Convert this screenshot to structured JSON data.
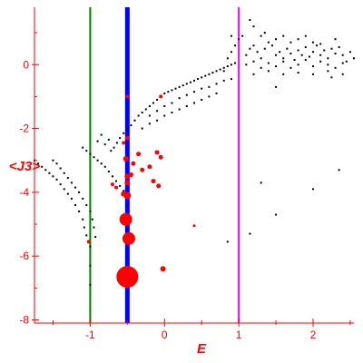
{
  "chart_data": {
    "type": "scatter",
    "title": "",
    "xlabel": "E",
    "ylabel": "<J3>",
    "xlim": [
      -1.75,
      2.55
    ],
    "ylim": [
      -8.1,
      1.8
    ],
    "x_ticks": [
      -1,
      0,
      1,
      2
    ],
    "y_ticks": [
      0,
      -2,
      -4,
      -6,
      -8
    ],
    "colors": {
      "axis": "#ff0000",
      "points": "#000000",
      "highlight": "#ff0000",
      "line_green": "#008000",
      "line_blue": "#0000ff",
      "line_magenta": "#ff00ff"
    },
    "vertical_lines": [
      {
        "x": -1.0,
        "color": "#008000",
        "weight": "thin"
      },
      {
        "x": -0.5,
        "color": "#0000ff",
        "weight": "thick"
      },
      {
        "x": 1.0,
        "color": "#ff00ff",
        "weight": "thin"
      }
    ],
    "series": [
      {
        "color": "#000000",
        "points": [
          [
            -1.75,
            -3.0
          ],
          [
            -1.7,
            -3.1
          ],
          [
            -1.65,
            -3.2
          ],
          [
            -1.6,
            -3.3
          ],
          [
            -1.55,
            -3.4
          ],
          [
            -1.5,
            -3.5
          ],
          [
            -1.45,
            -3.6
          ],
          [
            -1.4,
            -3.75
          ],
          [
            -1.35,
            -3.9
          ],
          [
            -1.3,
            -4.05
          ],
          [
            -1.25,
            -4.2
          ],
          [
            -1.2,
            -4.4
          ],
          [
            -1.15,
            -4.6
          ],
          [
            -1.1,
            -4.85
          ],
          [
            -1.08,
            -5.1
          ],
          [
            -1.05,
            -5.35
          ],
          [
            -1.02,
            -5.55
          ],
          [
            -1.0,
            -5.7
          ],
          [
            -1.5,
            -3.0
          ],
          [
            -1.45,
            -3.1
          ],
          [
            -1.4,
            -3.25
          ],
          [
            -1.35,
            -3.4
          ],
          [
            -1.3,
            -3.55
          ],
          [
            -1.25,
            -3.7
          ],
          [
            -1.2,
            -3.85
          ],
          [
            -1.15,
            -4.0
          ],
          [
            -1.1,
            -4.2
          ],
          [
            -1.05,
            -4.4
          ],
          [
            -1.0,
            -4.6
          ],
          [
            -0.97,
            -4.85
          ],
          [
            -0.95,
            -5.1
          ],
          [
            -0.93,
            -5.4
          ],
          [
            -1.0,
            -6.3
          ],
          [
            -1.0,
            -6.9
          ],
          [
            -1.1,
            -2.6
          ],
          [
            -1.05,
            -2.7
          ],
          [
            -1.0,
            -2.8
          ],
          [
            -0.95,
            -2.9
          ],
          [
            -0.9,
            -3.0
          ],
          [
            -0.85,
            -3.1
          ],
          [
            -0.8,
            -3.2
          ],
          [
            -0.75,
            -3.35
          ],
          [
            -0.7,
            -3.5
          ],
          [
            -0.65,
            -3.65
          ],
          [
            -0.6,
            -3.8
          ],
          [
            -0.55,
            -3.95
          ],
          [
            -0.9,
            -2.4
          ],
          [
            -0.8,
            -2.5
          ],
          [
            -0.85,
            -2.2
          ],
          [
            -0.75,
            -2.35
          ],
          [
            -0.72,
            -2.7
          ],
          [
            -0.68,
            -2.6
          ],
          [
            -0.64,
            -2.45
          ],
          [
            -0.6,
            -2.3
          ],
          [
            -0.55,
            -2.15
          ],
          [
            -0.5,
            -2.0
          ],
          [
            -0.45,
            -1.9
          ],
          [
            -0.4,
            -1.75
          ],
          [
            -0.35,
            -1.6
          ],
          [
            -0.3,
            -1.5
          ],
          [
            -0.25,
            -1.4
          ],
          [
            -0.2,
            -1.3
          ],
          [
            -0.15,
            -1.2
          ],
          [
            -0.1,
            -1.1
          ],
          [
            -0.05,
            -1.0
          ],
          [
            0.0,
            -0.9
          ],
          [
            0.05,
            -0.85
          ],
          [
            0.1,
            -0.8
          ],
          [
            0.15,
            -0.75
          ],
          [
            0.2,
            -0.7
          ],
          [
            0.25,
            -0.65
          ],
          [
            0.3,
            -0.6
          ],
          [
            0.35,
            -0.55
          ],
          [
            0.4,
            -0.5
          ],
          [
            0.45,
            -0.45
          ],
          [
            0.5,
            -0.4
          ],
          [
            0.55,
            -0.35
          ],
          [
            0.6,
            -0.3
          ],
          [
            0.65,
            -0.25
          ],
          [
            0.7,
            -0.2
          ],
          [
            0.75,
            -0.15
          ],
          [
            0.8,
            -0.1
          ],
          [
            0.85,
            -0.05
          ],
          [
            0.9,
            0.0
          ],
          [
            0.95,
            0.05
          ],
          [
            -0.2,
            -1.6
          ],
          [
            -0.1,
            -1.45
          ],
          [
            0.0,
            -1.3
          ],
          [
            0.1,
            -1.2
          ],
          [
            0.2,
            -1.05
          ],
          [
            0.3,
            -0.95
          ],
          [
            0.4,
            -0.85
          ],
          [
            0.5,
            -0.75
          ],
          [
            0.6,
            -0.7
          ],
          [
            0.7,
            -0.6
          ],
          [
            0.8,
            -0.5
          ],
          [
            0.9,
            -0.45
          ],
          [
            -0.3,
            -2.0
          ],
          [
            -0.2,
            -1.85
          ],
          [
            -0.1,
            -1.75
          ],
          [
            0.0,
            -1.6
          ],
          [
            0.1,
            -1.5
          ],
          [
            0.2,
            -1.4
          ],
          [
            0.3,
            -1.3
          ],
          [
            0.4,
            -1.2
          ],
          [
            0.5,
            -1.1
          ],
          [
            0.6,
            -1.0
          ],
          [
            0.7,
            -0.9
          ],
          [
            0.8,
            -0.2
          ],
          [
            0.85,
            0.2
          ],
          [
            0.9,
            0.4
          ],
          [
            0.95,
            0.6
          ],
          [
            1.0,
            0.8
          ],
          [
            1.05,
            0.9
          ],
          [
            0.9,
            0.9
          ],
          [
            1.1,
            0.3
          ],
          [
            1.15,
            0.5
          ],
          [
            1.2,
            0.6
          ],
          [
            1.25,
            0.4
          ],
          [
            1.3,
            0.2
          ],
          [
            1.35,
            0.5
          ],
          [
            1.4,
            0.7
          ],
          [
            1.45,
            0.6
          ],
          [
            1.5,
            0.3
          ],
          [
            1.55,
            0.4
          ],
          [
            1.6,
            0.2
          ],
          [
            1.65,
            0.5
          ],
          [
            1.7,
            0.35
          ],
          [
            1.75,
            0.15
          ],
          [
            1.8,
            0.45
          ],
          [
            1.85,
            0.3
          ],
          [
            1.9,
            0.55
          ],
          [
            1.95,
            0.25
          ],
          [
            2.0,
            0.4
          ],
          [
            2.05,
            0.6
          ],
          [
            2.1,
            0.3
          ],
          [
            2.15,
            0.45
          ],
          [
            2.2,
            0.2
          ],
          [
            2.25,
            0.5
          ],
          [
            2.3,
            0.35
          ],
          [
            2.35,
            0.55
          ],
          [
            2.4,
            0.3
          ],
          [
            2.45,
            0.1
          ],
          [
            2.5,
            0.4
          ],
          [
            2.55,
            0.2
          ],
          [
            1.1,
            0.0
          ],
          [
            1.2,
            0.1
          ],
          [
            1.3,
            -0.1
          ],
          [
            1.4,
            0.05
          ],
          [
            1.5,
            -0.05
          ],
          [
            1.6,
            0.1
          ],
          [
            1.7,
            -0.1
          ],
          [
            1.8,
            0.0
          ],
          [
            1.9,
            0.15
          ],
          [
            2.0,
            -0.05
          ],
          [
            2.1,
            0.1
          ],
          [
            2.2,
            0.0
          ],
          [
            2.3,
            -0.1
          ],
          [
            2.4,
            0.05
          ],
          [
            1.15,
            1.4
          ],
          [
            1.2,
            1.2
          ],
          [
            1.3,
            0.9
          ],
          [
            1.35,
            1.0
          ],
          [
            1.5,
            0.8
          ],
          [
            1.6,
            0.9
          ],
          [
            1.7,
            0.7
          ],
          [
            1.8,
            0.8
          ],
          [
            1.9,
            0.9
          ],
          [
            2.0,
            0.7
          ],
          [
            2.1,
            0.65
          ],
          [
            1.2,
            -0.3
          ],
          [
            1.4,
            -0.2
          ],
          [
            1.6,
            -0.3
          ],
          [
            1.8,
            -0.25
          ],
          [
            2.0,
            -0.3
          ],
          [
            2.2,
            -0.2
          ],
          [
            2.4,
            -0.3
          ],
          [
            1.5,
            -0.7
          ],
          [
            2.25,
            -0.4
          ],
          [
            2.3,
            0.8
          ],
          [
            1.3,
            -3.7
          ],
          [
            1.5,
            -4.7
          ],
          [
            2.0,
            -3.9
          ],
          [
            2.35,
            -3.3
          ],
          [
            1.15,
            -5.3
          ],
          [
            0.85,
            -5.55
          ]
        ]
      },
      {
        "color": "#ff0000",
        "points": [
          [
            -0.5,
            -6.65,
            12
          ],
          [
            -0.52,
            -4.85,
            7
          ],
          [
            -0.48,
            -5.45,
            7
          ],
          [
            -0.5,
            -4.1,
            4
          ],
          [
            -0.55,
            -4.05,
            3
          ],
          [
            -0.5,
            -3.7,
            3
          ],
          [
            -0.5,
            -3.5,
            3
          ],
          [
            -0.52,
            -2.95,
            3
          ],
          [
            -0.5,
            -2.3,
            2.5
          ],
          [
            -0.45,
            -3.45,
            2.5
          ],
          [
            -0.42,
            -3.1,
            2.5
          ],
          [
            -0.35,
            -2.8,
            2.5
          ],
          [
            -0.3,
            -3.3,
            2.5
          ],
          [
            -0.2,
            -3.2,
            2.5
          ],
          [
            -0.15,
            -3.65,
            2.5
          ],
          [
            -0.1,
            -2.75,
            2.5
          ],
          [
            -0.08,
            -3.8,
            2.5
          ],
          [
            -0.05,
            -2.9,
            2.5
          ],
          [
            -0.55,
            -2.45,
            2
          ],
          [
            -0.65,
            -3.85,
            2
          ],
          [
            -0.7,
            -3.75,
            2
          ],
          [
            -0.02,
            -6.4,
            3
          ],
          [
            0.4,
            -5.05,
            1.5
          ],
          [
            -1.02,
            -5.55,
            2
          ],
          [
            -0.05,
            -1.0,
            2
          ],
          [
            -0.5,
            -1.0,
            2
          ]
        ]
      }
    ]
  }
}
